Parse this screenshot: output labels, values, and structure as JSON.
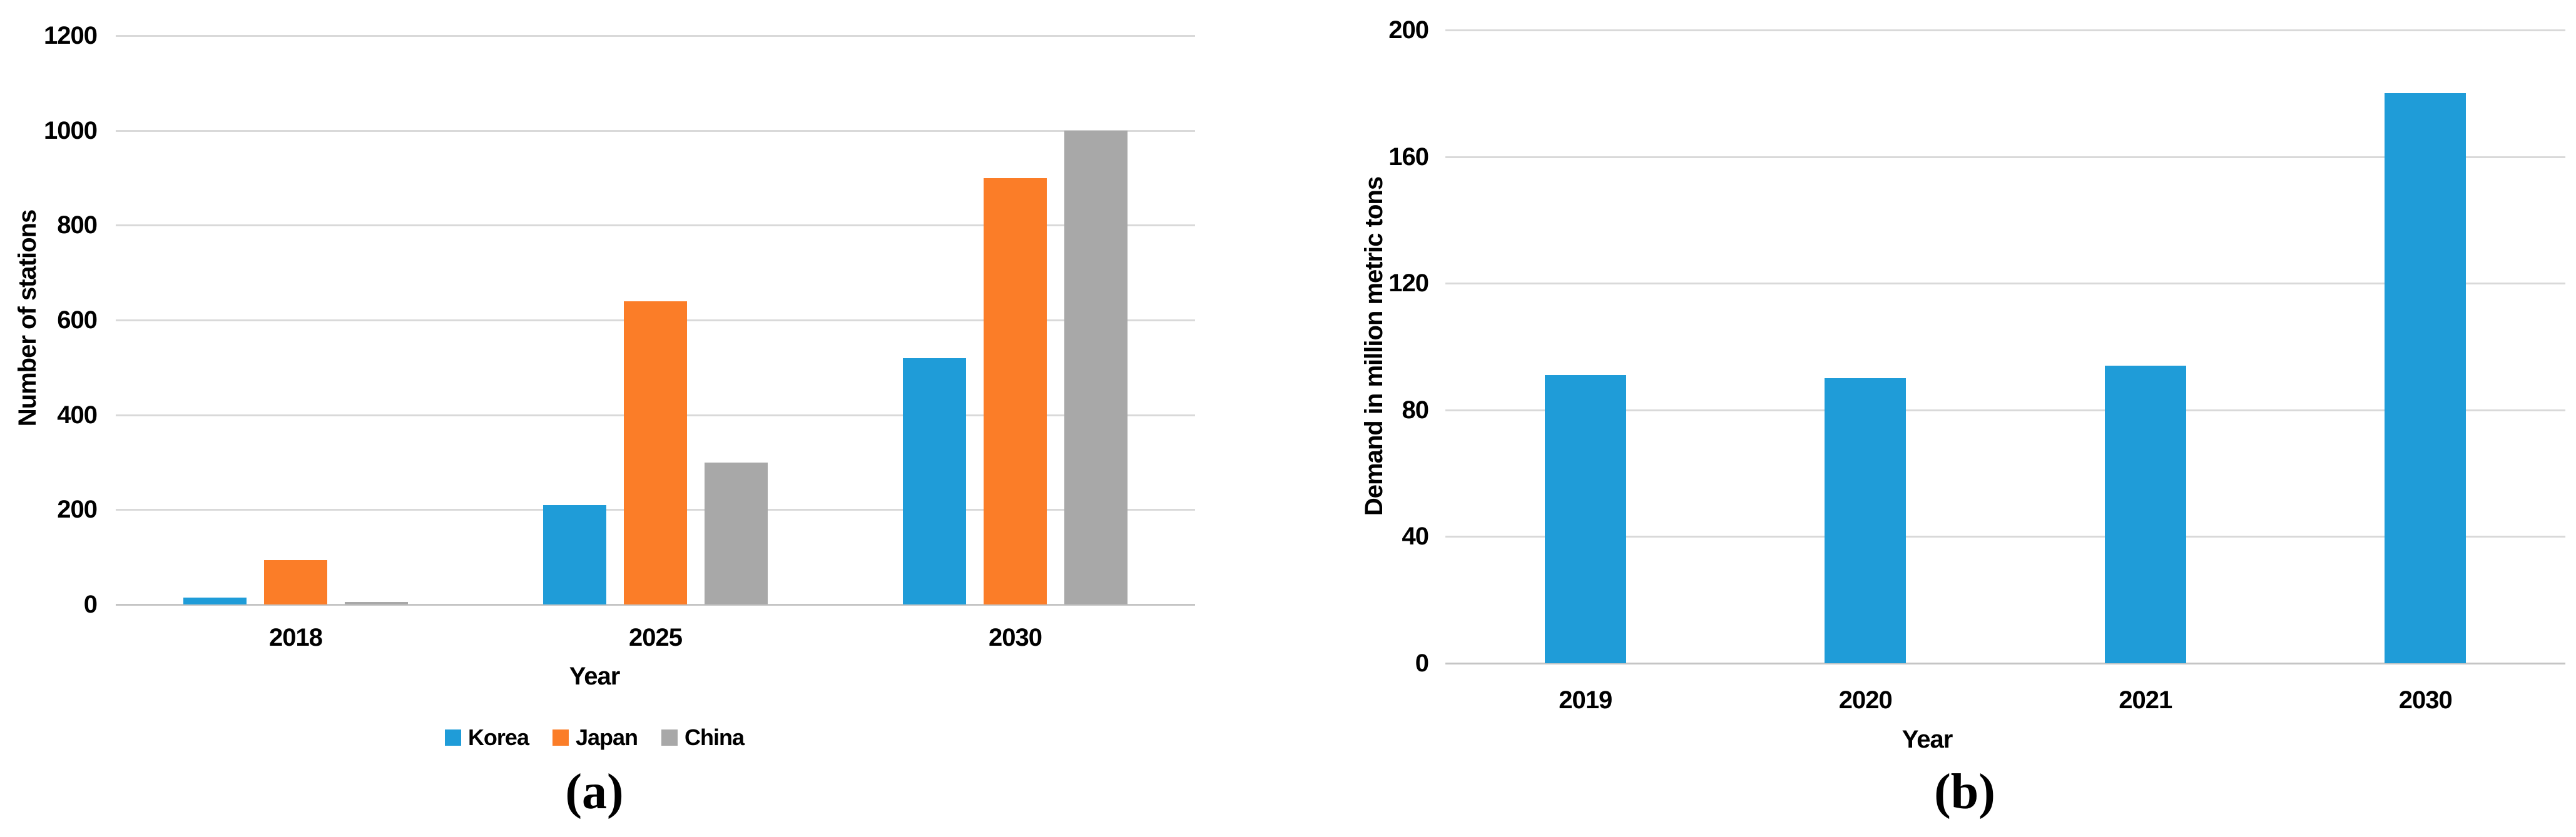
{
  "figure": {
    "background": "#ffffff",
    "panel_count": 2
  },
  "colors": {
    "series_blue": "#1F9CD8",
    "series_orange": "#FB7D28",
    "series_gray": "#A8A8A8",
    "gridline": "#D9D9D9",
    "axis_line": "#C5C5C5",
    "text": "#000000"
  },
  "chart_data": [
    {
      "panel": "a",
      "type": "bar",
      "caption": "(a)",
      "title": "",
      "categories": [
        "2018",
        "2025",
        "2030"
      ],
      "series": [
        {
          "name": "Korea",
          "color": "#1F9CD8",
          "values": [
            14,
            210,
            520
          ]
        },
        {
          "name": "Japan",
          "color": "#FB7D28",
          "values": [
            93,
            640,
            900
          ]
        },
        {
          "name": "China",
          "color": "#A8A8A8",
          "values": [
            5,
            300,
            1000
          ]
        }
      ],
      "xlabel": "Year",
      "ylabel": "Number of stations",
      "ylim": [
        0,
        1200
      ],
      "ytick_step": 200,
      "yticks": [
        0,
        200,
        400,
        600,
        800,
        1000,
        1200
      ],
      "grid": true,
      "legend_position": "bottom"
    },
    {
      "panel": "b",
      "type": "bar",
      "caption": "(b)",
      "title": "",
      "categories": [
        "2019",
        "2020",
        "2021",
        "2030"
      ],
      "series": [
        {
          "name": "Demand",
          "color": "#1F9CD8",
          "values": [
            91,
            90,
            94,
            180
          ]
        }
      ],
      "xlabel": "Year",
      "ylabel": "Demand in million metric tons",
      "ylim": [
        0,
        200
      ],
      "ytick_step": 40,
      "yticks": [
        0,
        40,
        80,
        120,
        160,
        200
      ],
      "grid": true,
      "legend_position": "none"
    }
  ]
}
